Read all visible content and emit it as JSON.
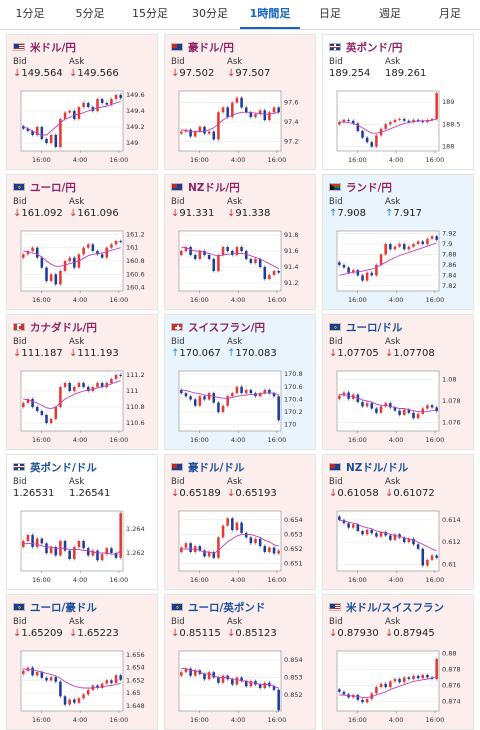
{
  "tabs": [
    {
      "label": "1分足",
      "active": false
    },
    {
      "label": "5分足",
      "active": false
    },
    {
      "label": "15分足",
      "active": false
    },
    {
      "label": "30分足",
      "active": false
    },
    {
      "label": "1時間足",
      "active": true
    },
    {
      "label": "日足",
      "active": false
    },
    {
      "label": "週足",
      "active": false
    },
    {
      "label": "月足",
      "active": false
    }
  ],
  "labels": {
    "bid": "Bid",
    "ask": "Ask"
  },
  "colors": {
    "candle_up": "#e53935",
    "candle_down": "#1e3c9a",
    "ma": "#c040c0",
    "line": "#2a7fd0",
    "title_pink": "#8e2464",
    "title_blue": "#1a4f9c"
  },
  "cards": [
    {
      "name": "usdjpy",
      "title": "米ドル/円",
      "flag": "us",
      "style": "down",
      "titleColor": "pink",
      "dir": "down",
      "bid": "149.564",
      "ask": "149.566"
    },
    {
      "name": "audjpy",
      "title": "豪ドル/円",
      "flag": "au",
      "style": "down",
      "titleColor": "pink",
      "dir": "down",
      "bid": "97.502",
      "ask": "97.507"
    },
    {
      "name": "gbpjpy",
      "title": "英ポンド/円",
      "flag": "uk",
      "style": "flat",
      "titleColor": "pink",
      "dir": "none",
      "bid": "189.254",
      "ask": "189.261"
    },
    {
      "name": "eurjpy",
      "title": "ユーロ/円",
      "flag": "eu",
      "style": "down",
      "titleColor": "pink",
      "dir": "down",
      "bid": "161.092",
      "ask": "161.096"
    },
    {
      "name": "nzdjpy",
      "title": "NZドル/円",
      "flag": "nz",
      "style": "down",
      "titleColor": "pink",
      "dir": "down",
      "bid": "91.331",
      "ask": "91.338"
    },
    {
      "name": "zarjpy",
      "title": "ランド/円",
      "flag": "za",
      "style": "up",
      "titleColor": "pink",
      "dir": "up",
      "bid": "7.908",
      "ask": "7.917"
    },
    {
      "name": "cadjpy",
      "title": "カナダドル/円",
      "flag": "ca",
      "style": "down",
      "titleColor": "pink",
      "dir": "down",
      "bid": "111.187",
      "ask": "111.193"
    },
    {
      "name": "chfjpy",
      "title": "スイスフラン/円",
      "flag": "ch",
      "style": "up",
      "titleColor": "pink",
      "dir": "up",
      "bid": "170.067",
      "ask": "170.083"
    },
    {
      "name": "eurusd",
      "title": "ユーロ/ドル",
      "flag": "eu",
      "style": "down",
      "titleColor": "blue",
      "dir": "down",
      "bid": "1.07705",
      "ask": "1.07708"
    },
    {
      "name": "gbpusd",
      "title": "英ポンド/ドル",
      "flag": "uk",
      "style": "flat",
      "titleColor": "blue",
      "dir": "none",
      "bid": "1.26531",
      "ask": "1.26541"
    },
    {
      "name": "audusd",
      "title": "豪ドル/ドル",
      "flag": "au",
      "style": "down",
      "titleColor": "blue",
      "dir": "down",
      "bid": "0.65189",
      "ask": "0.65193"
    },
    {
      "name": "nzdusd",
      "title": "NZドル/ドル",
      "flag": "nz",
      "style": "down",
      "titleColor": "blue",
      "dir": "down",
      "bid": "0.61058",
      "ask": "0.61072"
    },
    {
      "name": "euraud",
      "title": "ユーロ/豪ドル",
      "flag": "eu",
      "style": "down",
      "titleColor": "blue",
      "dir": "down",
      "bid": "1.65209",
      "ask": "1.65223"
    },
    {
      "name": "eurgbp",
      "title": "ユーロ/英ポンド",
      "flag": "eu",
      "style": "down",
      "titleColor": "blue",
      "dir": "down",
      "bid": "0.85115",
      "ask": "0.85123"
    },
    {
      "name": "usdchf",
      "title": "米ドル/スイスフラン",
      "flag": "us",
      "style": "down",
      "titleColor": "blue",
      "dir": "down",
      "bid": "0.87930",
      "ask": "0.87945"
    }
  ],
  "chart_data": [
    {
      "type": "line",
      "pair": "usdjpy",
      "x_ticks": [
        "16:00",
        "4:00",
        "16:00"
      ],
      "y_ticks": [
        "149.6",
        "149.4",
        "149.2",
        "149"
      ],
      "ylim": [
        148.9,
        149.65
      ],
      "close": [
        149.18,
        149.15,
        149.1,
        149.2,
        149.05,
        149.0,
        149.1,
        148.95,
        149.3,
        149.38,
        149.4,
        149.3,
        149.45,
        149.5,
        149.45,
        149.4,
        149.55,
        149.5,
        149.48,
        149.55,
        149.6,
        149.56
      ],
      "ma": [
        149.2,
        149.18,
        149.15,
        149.12,
        149.1,
        149.1,
        149.15,
        149.2,
        149.25,
        149.3,
        149.32,
        149.35,
        149.36,
        149.38,
        149.4,
        149.42,
        149.44,
        149.45,
        149.46,
        149.48,
        149.5,
        149.52
      ]
    },
    {
      "type": "line",
      "pair": "audjpy",
      "x_ticks": [
        "16:00",
        "4:00",
        "16:00"
      ],
      "y_ticks": [
        "97.6",
        "97.4",
        "97.2"
      ],
      "ylim": [
        97.1,
        97.72
      ],
      "close": [
        97.3,
        97.32,
        97.25,
        97.3,
        97.35,
        97.28,
        97.3,
        97.22,
        97.5,
        97.55,
        97.45,
        97.6,
        97.65,
        97.55,
        97.5,
        97.45,
        97.48,
        97.52,
        97.42,
        97.5,
        97.55,
        97.5
      ],
      "ma": [
        97.32,
        97.31,
        97.3,
        97.3,
        97.3,
        97.3,
        97.32,
        97.34,
        97.38,
        97.42,
        97.45,
        97.47,
        97.49,
        97.5,
        97.5,
        97.5,
        97.49,
        97.49,
        97.48,
        97.48,
        97.49,
        97.5
      ]
    },
    {
      "type": "line",
      "pair": "gbpjpy",
      "x_ticks": [
        "16:00",
        "4:00",
        "16:00"
      ],
      "y_ticks": [
        "189",
        "188.5",
        "188"
      ],
      "ylim": [
        187.9,
        189.25
      ],
      "close": [
        188.55,
        188.6,
        188.58,
        188.52,
        188.35,
        188.2,
        188.1,
        188.0,
        188.25,
        188.4,
        188.5,
        188.55,
        188.6,
        188.62,
        188.58,
        188.55,
        188.6,
        188.58,
        188.55,
        188.6,
        188.62,
        189.2
      ],
      "ma": [
        188.55,
        188.55,
        188.54,
        188.52,
        188.48,
        188.42,
        188.36,
        188.3,
        188.3,
        188.32,
        188.36,
        188.4,
        188.44,
        188.48,
        188.52,
        188.54,
        188.56,
        188.57,
        188.58,
        188.58,
        188.59,
        188.62
      ]
    },
    {
      "type": "line",
      "pair": "eurjpy",
      "x_ticks": [
        "16:00",
        "4:00",
        "16:00"
      ],
      "y_ticks": [
        "161.2",
        "161",
        "160.8",
        "160.6",
        "160.4"
      ],
      "ylim": [
        160.35,
        161.25
      ],
      "close": [
        160.9,
        160.95,
        161.0,
        160.85,
        160.7,
        160.5,
        160.6,
        160.45,
        160.65,
        160.8,
        160.85,
        160.7,
        160.9,
        161.0,
        161.05,
        160.95,
        160.9,
        160.85,
        161.0,
        161.05,
        161.1,
        161.09
      ],
      "ma": [
        160.95,
        160.94,
        160.92,
        160.9,
        160.86,
        160.8,
        160.75,
        160.72,
        160.72,
        160.74,
        160.76,
        160.78,
        160.8,
        160.84,
        160.88,
        160.9,
        160.91,
        160.92,
        160.94,
        160.96,
        160.98,
        161.0
      ]
    },
    {
      "type": "line",
      "pair": "nzdjpy",
      "x_ticks": [
        "16:00",
        "4:00",
        "16:00"
      ],
      "y_ticks": [
        "91.8",
        "91.6",
        "91.4",
        "91.2"
      ],
      "ylim": [
        91.1,
        91.85
      ],
      "close": [
        91.6,
        91.65,
        91.55,
        91.5,
        91.6,
        91.55,
        91.5,
        91.35,
        91.55,
        91.65,
        91.6,
        91.55,
        91.65,
        91.6,
        91.5,
        91.45,
        91.5,
        91.4,
        91.25,
        91.3,
        91.35,
        91.33
      ],
      "ma": [
        91.65,
        91.64,
        91.62,
        91.6,
        91.6,
        91.58,
        91.57,
        91.55,
        91.54,
        91.55,
        91.56,
        91.56,
        91.57,
        91.57,
        91.56,
        91.54,
        91.52,
        91.5,
        91.47,
        91.44,
        91.41,
        91.38
      ]
    },
    {
      "type": "line",
      "pair": "zarjpy",
      "x_ticks": [
        "16:00",
        "4:00",
        "16:00"
      ],
      "y_ticks": [
        "7.92",
        "7.9",
        "7.88",
        "7.86",
        "7.84",
        "7.82"
      ],
      "ylim": [
        7.81,
        7.925
      ],
      "close": [
        7.86,
        7.855,
        7.845,
        7.85,
        7.84,
        7.83,
        7.845,
        7.84,
        7.86,
        7.88,
        7.9,
        7.89,
        7.895,
        7.9,
        7.89,
        7.895,
        7.9,
        7.905,
        7.9,
        7.91,
        7.915,
        7.908
      ],
      "ma": [
        7.84,
        7.842,
        7.844,
        7.846,
        7.847,
        7.848,
        7.85,
        7.852,
        7.855,
        7.86,
        7.865,
        7.87,
        7.874,
        7.878,
        7.881,
        7.884,
        7.887,
        7.89,
        7.893,
        7.896,
        7.899,
        7.902
      ]
    },
    {
      "type": "line",
      "pair": "cadjpy",
      "x_ticks": [
        "16:00",
        "4:00",
        "16:00"
      ],
      "y_ticks": [
        "111.2",
        "111",
        "110.8",
        "110.6"
      ],
      "ylim": [
        110.5,
        111.25
      ],
      "close": [
        110.85,
        110.9,
        110.8,
        110.75,
        110.7,
        110.6,
        110.65,
        110.8,
        111.05,
        111.1,
        111.0,
        111.05,
        111.1,
        111.05,
        111.0,
        111.05,
        111.1,
        111.05,
        111.1,
        111.15,
        111.2,
        111.19
      ],
      "ma": [
        110.9,
        110.89,
        110.87,
        110.85,
        110.82,
        110.79,
        110.78,
        110.8,
        110.85,
        110.9,
        110.93,
        110.96,
        110.98,
        111.0,
        111.01,
        111.02,
        111.04,
        111.05,
        111.07,
        111.09,
        111.11,
        111.13
      ]
    },
    {
      "type": "line",
      "pair": "chfjpy",
      "x_ticks": [
        "16:00",
        "4:00",
        "16:00"
      ],
      "y_ticks": [
        "170.8",
        "170.6",
        "170.4",
        "170.2",
        "170"
      ],
      "ylim": [
        169.9,
        170.85
      ],
      "close": [
        170.5,
        170.45,
        170.4,
        170.3,
        170.45,
        170.4,
        170.5,
        170.35,
        170.2,
        170.3,
        170.45,
        170.5,
        170.6,
        170.5,
        170.55,
        170.5,
        170.45,
        170.5,
        170.55,
        170.5,
        170.45,
        170.07
      ],
      "ma": [
        170.55,
        170.54,
        170.52,
        170.5,
        170.49,
        170.47,
        170.46,
        170.45,
        170.43,
        170.42,
        170.42,
        170.43,
        170.45,
        170.46,
        170.47,
        170.48,
        170.48,
        170.49,
        170.5,
        170.5,
        170.5,
        170.47
      ]
    },
    {
      "type": "line",
      "pair": "eurusd",
      "x_ticks": [
        "16:00",
        "4:00",
        "16:00"
      ],
      "y_ticks": [
        "1.08",
        "1.078",
        "1.076"
      ],
      "ylim": [
        1.0752,
        1.0808
      ],
      "close": [
        1.0785,
        1.0788,
        1.0782,
        1.0786,
        1.0779,
        1.0775,
        1.0778,
        1.0773,
        1.0769,
        1.0775,
        1.0778,
        1.0774,
        1.0771,
        1.0767,
        1.0772,
        1.0769,
        1.0764,
        1.0768,
        1.0773,
        1.0776,
        1.0774,
        1.07705
      ],
      "ma": [
        1.0786,
        1.0786,
        1.0785,
        1.0784,
        1.0783,
        1.0781,
        1.078,
        1.0779,
        1.0777,
        1.0776,
        1.0776,
        1.0775,
        1.0774,
        1.0773,
        1.0773,
        1.0772,
        1.0771,
        1.077,
        1.077,
        1.077,
        1.0771,
        1.0771
      ]
    },
    {
      "type": "line",
      "pair": "gbpusd",
      "x_ticks": [
        "16:00",
        "4:00",
        "16:00"
      ],
      "y_ticks": [
        "1.264",
        "1.262"
      ],
      "ylim": [
        1.2605,
        1.2655
      ],
      "close": [
        1.263,
        1.2635,
        1.2625,
        1.2632,
        1.2628,
        1.262,
        1.2625,
        1.2618,
        1.263,
        1.2622,
        1.2615,
        1.2625,
        1.263,
        1.2624,
        1.2618,
        1.2622,
        1.2614,
        1.2619,
        1.2624,
        1.262,
        1.2616,
        1.26531
      ],
      "ma": [
        1.2628,
        1.2628,
        1.2628,
        1.2627,
        1.2626,
        1.2625,
        1.2625,
        1.2624,
        1.2624,
        1.2624,
        1.2623,
        1.2623,
        1.2623,
        1.2622,
        1.2622,
        1.2621,
        1.262,
        1.262,
        1.262,
        1.2619,
        1.2619,
        1.2622
      ]
    },
    {
      "type": "line",
      "pair": "audusd",
      "x_ticks": [
        "16:00",
        "4:00",
        "16:00"
      ],
      "y_ticks": [
        "0.654",
        "0.653",
        "0.652",
        "0.651"
      ],
      "ylim": [
        0.6505,
        0.6546
      ],
      "close": [
        0.6521,
        0.6524,
        0.6518,
        0.6522,
        0.6519,
        0.6515,
        0.6518,
        0.6514,
        0.6528,
        0.6536,
        0.6541,
        0.6533,
        0.6538,
        0.6531,
        0.6528,
        0.6524,
        0.6527,
        0.6522,
        0.6518,
        0.6521,
        0.6517,
        0.65189
      ],
      "ma": [
        0.652,
        0.652,
        0.652,
        0.652,
        0.6519,
        0.6518,
        0.6518,
        0.6517,
        0.6519,
        0.6522,
        0.6525,
        0.6527,
        0.6529,
        0.653,
        0.653,
        0.653,
        0.6529,
        0.6528,
        0.6526,
        0.6525,
        0.6523,
        0.6522
      ]
    },
    {
      "type": "line",
      "pair": "nzdusd",
      "x_ticks": [
        "16:00",
        "4:00",
        "16:00"
      ],
      "y_ticks": [
        "0.614",
        "0.612",
        "0.61"
      ],
      "ylim": [
        0.6094,
        0.6148
      ],
      "close": [
        0.614,
        0.6137,
        0.6133,
        0.6136,
        0.613,
        0.6127,
        0.6131,
        0.6128,
        0.6125,
        0.6129,
        0.6126,
        0.6122,
        0.6127,
        0.6124,
        0.612,
        0.6123,
        0.6118,
        0.6114,
        0.6099,
        0.6104,
        0.6108,
        0.61058
      ],
      "ma": [
        0.614,
        0.6139,
        0.6138,
        0.6137,
        0.6136,
        0.6134,
        0.6133,
        0.6132,
        0.613,
        0.6129,
        0.6128,
        0.6127,
        0.6126,
        0.6125,
        0.6124,
        0.6123,
        0.6122,
        0.612,
        0.6118,
        0.6116,
        0.6114,
        0.6112
      ]
    },
    {
      "type": "line",
      "pair": "euraud",
      "x_ticks": [
        "16:00",
        "4:00",
        "16:00"
      ],
      "y_ticks": [
        "1.656",
        "1.654",
        "1.652",
        "1.65",
        "1.648"
      ],
      "ylim": [
        1.6472,
        1.6566
      ],
      "close": [
        1.6535,
        1.654,
        1.6528,
        1.6533,
        1.6524,
        1.652,
        1.6525,
        1.6518,
        1.6495,
        1.6482,
        1.649,
        1.6485,
        1.6492,
        1.6498,
        1.6505,
        1.6512,
        1.6508,
        1.6515,
        1.652,
        1.6516,
        1.6528,
        1.65209
      ],
      "ma": [
        1.6538,
        1.6537,
        1.6536,
        1.6535,
        1.6533,
        1.6531,
        1.6529,
        1.6527,
        1.6523,
        1.6518,
        1.6514,
        1.6511,
        1.6509,
        1.6508,
        1.6508,
        1.6508,
        1.6509,
        1.651,
        1.6511,
        1.6512,
        1.6514,
        1.6515
      ]
    },
    {
      "type": "line",
      "pair": "eurgbp",
      "x_ticks": [
        "16:00",
        "4:00",
        "16:00"
      ],
      "y_ticks": [
        "0.854",
        "0.853",
        "0.852"
      ],
      "ylim": [
        0.8511,
        0.8545
      ],
      "close": [
        0.8533,
        0.8535,
        0.8531,
        0.8534,
        0.8532,
        0.8529,
        0.8533,
        0.853,
        0.8527,
        0.8531,
        0.8529,
        0.8526,
        0.853,
        0.8528,
        0.8525,
        0.8528,
        0.8526,
        0.8524,
        0.8527,
        0.8525,
        0.8523,
        0.85115
      ],
      "ma": [
        0.8535,
        0.8535,
        0.8534,
        0.8534,
        0.8533,
        0.8532,
        0.8532,
        0.8531,
        0.853,
        0.853,
        0.853,
        0.8529,
        0.8529,
        0.8528,
        0.8528,
        0.8527,
        0.8527,
        0.8526,
        0.8526,
        0.8526,
        0.8525,
        0.8524
      ]
    },
    {
      "type": "line",
      "pair": "usdchf",
      "x_ticks": [
        "16:00",
        "4:00",
        "16:00"
      ],
      "y_ticks": [
        "0.88",
        "0.878",
        "0.876",
        "0.874"
      ],
      "ylim": [
        0.8728,
        0.8803
      ],
      "close": [
        0.8752,
        0.8749,
        0.8745,
        0.8748,
        0.8742,
        0.8739,
        0.8743,
        0.875,
        0.8758,
        0.8762,
        0.8758,
        0.8765,
        0.8768,
        0.8764,
        0.877,
        0.8768,
        0.8772,
        0.8769,
        0.8773,
        0.877,
        0.8768,
        0.8793
      ],
      "ma": [
        0.8748,
        0.8748,
        0.8747,
        0.8747,
        0.8746,
        0.8745,
        0.8745,
        0.8746,
        0.8748,
        0.875,
        0.8752,
        0.8755,
        0.8757,
        0.8759,
        0.8761,
        0.8763,
        0.8765,
        0.8766,
        0.8767,
        0.8768,
        0.8769,
        0.8771
      ]
    }
  ]
}
